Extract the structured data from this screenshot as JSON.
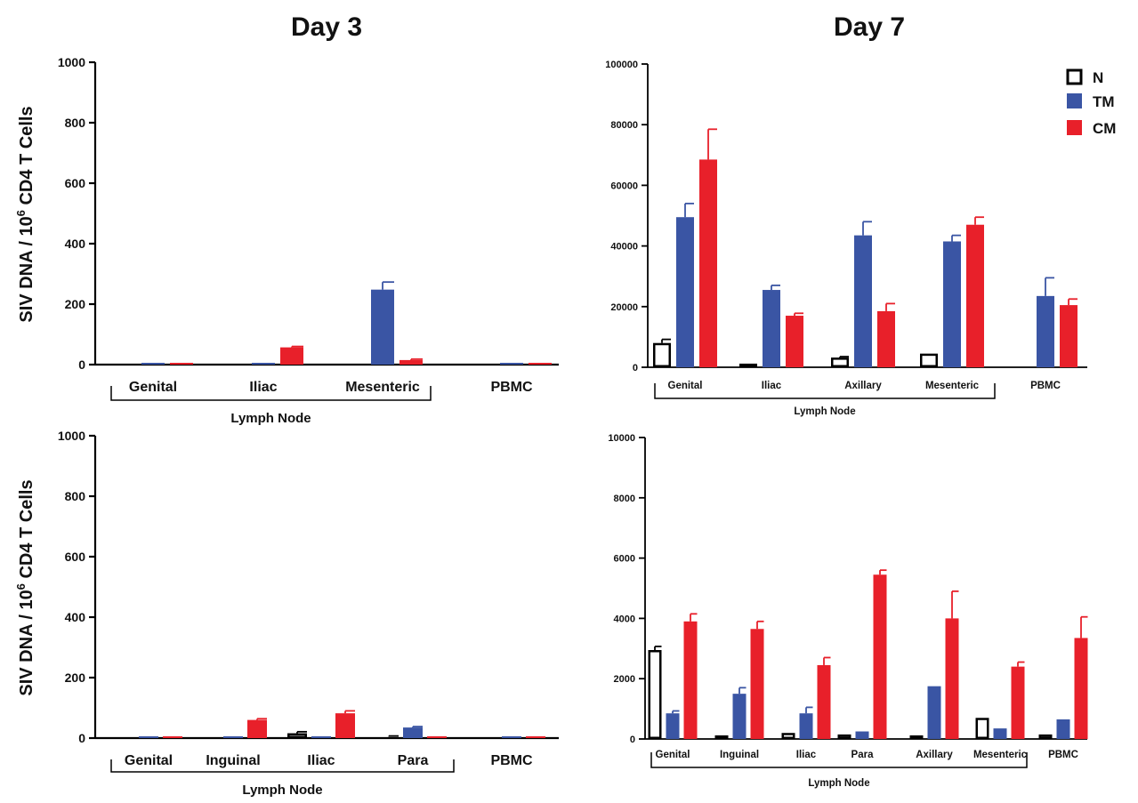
{
  "headings": {
    "left": "Day 3",
    "right": "Day 7"
  },
  "ylabel_left": {
    "prefix": "SIV DNA / 10",
    "sup": "6",
    "suffix": " CD4 T Cells"
  },
  "legend": [
    {
      "name": "N",
      "color": "#ffffff",
      "stroke": "#000000"
    },
    {
      "name": "TM",
      "color": "#3a55a4",
      "stroke": "#3a55a4"
    },
    {
      "name": "CM",
      "color": "#e8202a",
      "stroke": "#e8202a"
    }
  ],
  "bracket_label": "Lymph Node",
  "chart_data": [
    {
      "id": "day3-top",
      "type": "bar",
      "heading": "Day 3",
      "categories": [
        "Genital",
        "Iliac",
        "Mesenteric",
        "PBMC"
      ],
      "bracket_categories": [
        "Genital",
        "Iliac",
        "Mesenteric"
      ],
      "ylim": [
        0,
        1000
      ],
      "yticks": [
        "0",
        "200",
        "400",
        "600",
        "800",
        "1000"
      ],
      "series": [
        {
          "name": "N",
          "values": [
            4,
            3,
            4,
            3
          ],
          "errors": [
            0,
            0,
            0,
            0
          ]
        },
        {
          "name": "TM",
          "values": [
            4,
            4,
            248,
            4
          ],
          "errors": [
            0,
            0,
            25,
            0
          ]
        },
        {
          "name": "CM",
          "values": [
            4,
            57,
            15,
            4
          ],
          "errors": [
            0,
            3,
            3,
            0
          ]
        }
      ]
    },
    {
      "id": "day7-top",
      "type": "bar",
      "heading": "Day 7",
      "categories": [
        "Genital",
        "Iliac",
        "Axillary",
        "Mesenteric",
        "PBMC"
      ],
      "bracket_categories": [
        "Genital",
        "Iliac",
        "Axillary",
        "Mesenteric"
      ],
      "ylim": [
        0,
        100000
      ],
      "yticks": [
        "0",
        "20000",
        "40000",
        "60000",
        "80000",
        "100000"
      ],
      "series": [
        {
          "name": "N",
          "values": [
            8000,
            1200,
            3200,
            4500,
            300
          ],
          "errors": [
            1200,
            0,
            300,
            0,
            0
          ]
        },
        {
          "name": "TM",
          "values": [
            49500,
            25500,
            43500,
            41500,
            23500
          ],
          "errors": [
            4500,
            1500,
            4500,
            2000,
            6000
          ]
        },
        {
          "name": "CM",
          "values": [
            68500,
            17000,
            18500,
            47000,
            20500
          ],
          "errors": [
            10000,
            800,
            2500,
            2500,
            2000
          ]
        }
      ]
    },
    {
      "id": "day3-bottom",
      "type": "bar",
      "heading": "",
      "categories": [
        "Genital",
        "Inguinal",
        "Iliac",
        "Para",
        "PBMC"
      ],
      "bracket_categories": [
        "Genital",
        "Inguinal",
        "Iliac",
        "Para"
      ],
      "ylim": [
        0,
        1000
      ],
      "yticks": [
        "0",
        "200",
        "400",
        "600",
        "800",
        "1000"
      ],
      "series": [
        {
          "name": "N",
          "values": [
            4,
            4,
            16,
            5,
            3
          ],
          "errors": [
            0,
            0,
            5,
            2,
            0
          ]
        },
        {
          "name": "TM",
          "values": [
            4,
            4,
            4,
            35,
            3
          ],
          "errors": [
            0,
            0,
            0,
            3,
            0
          ]
        },
        {
          "name": "CM",
          "values": [
            4,
            60,
            82,
            4,
            4
          ],
          "errors": [
            0,
            4,
            8,
            0,
            0
          ]
        }
      ]
    },
    {
      "id": "day7-bottom",
      "type": "bar",
      "heading": "",
      "categories": [
        "Genital",
        "Inguinal",
        "Iliac",
        "Para",
        "Axillary",
        "Mesenteric",
        "PBMC"
      ],
      "bracket_categories": [
        "Genital",
        "Inguinal",
        "Iliac",
        "Para",
        "Axillary",
        "Mesenteric"
      ],
      "ylim": [
        0,
        10000
      ],
      "yticks": [
        "0",
        "2000",
        "4000",
        "6000",
        "8000",
        "10000"
      ],
      "series": [
        {
          "name": "N",
          "values": [
            2950,
            120,
            200,
            150,
            120,
            700,
            150
          ],
          "errors": [
            120,
            0,
            0,
            0,
            0,
            0,
            0
          ]
        },
        {
          "name": "TM",
          "values": [
            850,
            1500,
            850,
            250,
            1750,
            350,
            650
          ],
          "errors": [
            80,
            200,
            200,
            0,
            0,
            0,
            0
          ]
        },
        {
          "name": "CM",
          "values": [
            3900,
            3650,
            2450,
            5450,
            4000,
            2400,
            3350
          ],
          "errors": [
            250,
            250,
            250,
            150,
            900,
            150,
            700
          ]
        }
      ]
    }
  ]
}
